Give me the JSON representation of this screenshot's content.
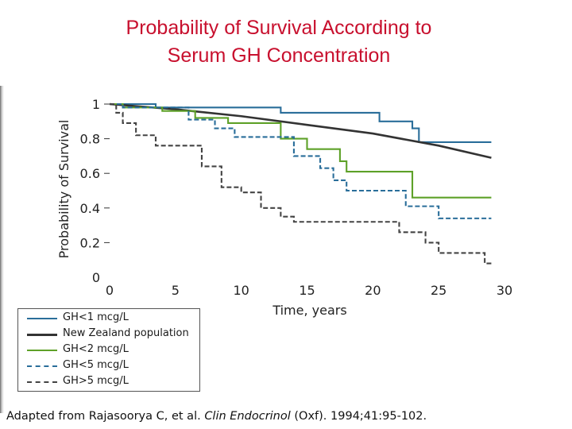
{
  "slide": {
    "title_line1": "Probability of Survival According to",
    "title_line2": "Serum GH Concentration"
  },
  "footnote": {
    "prefix": "Adapted from Rajasoorya C, et al. ",
    "journal": "Clin Endocrinol",
    "suffix": " (Oxf). 1994;41:95-102."
  },
  "chart_data": {
    "type": "line",
    "title": "",
    "xlabel": "Time, years",
    "ylabel": "Probability of Survival",
    "xlim": [
      0,
      30
    ],
    "ylim": [
      0,
      1
    ],
    "x_ticks": [
      "0",
      "5",
      "10",
      "15",
      "20",
      "25",
      "30"
    ],
    "y_ticks": [
      "0",
      "0.2",
      "0.4",
      "0.6",
      "0.8",
      "1"
    ],
    "legend_position": "below-left",
    "series": [
      {
        "name": "GH<1 mcg/L",
        "color": "#2a6e9a",
        "style": "solid-step",
        "points": [
          [
            0,
            1.0
          ],
          [
            3.5,
            1.0
          ],
          [
            3.5,
            0.98
          ],
          [
            13,
            0.98
          ],
          [
            13,
            0.95
          ],
          [
            20.5,
            0.95
          ],
          [
            20.5,
            0.9
          ],
          [
            23,
            0.9
          ],
          [
            23,
            0.86
          ],
          [
            23.5,
            0.86
          ],
          [
            23.5,
            0.78
          ],
          [
            29,
            0.78
          ]
        ]
      },
      {
        "name": "New Zealand population",
        "color": "#333333",
        "style": "solid-smooth",
        "points": [
          [
            0,
            1.0
          ],
          [
            5,
            0.97
          ],
          [
            10,
            0.93
          ],
          [
            15,
            0.88
          ],
          [
            20,
            0.83
          ],
          [
            25,
            0.76
          ],
          [
            29,
            0.69
          ]
        ]
      },
      {
        "name": "GH<2 mcg/L",
        "color": "#5ea128",
        "style": "solid-step",
        "points": [
          [
            0,
            1.0
          ],
          [
            1,
            1.0
          ],
          [
            1,
            0.98
          ],
          [
            4,
            0.98
          ],
          [
            4,
            0.96
          ],
          [
            6.5,
            0.96
          ],
          [
            6.5,
            0.92
          ],
          [
            9,
            0.92
          ],
          [
            9,
            0.89
          ],
          [
            13,
            0.89
          ],
          [
            13,
            0.8
          ],
          [
            15,
            0.8
          ],
          [
            15,
            0.74
          ],
          [
            17.5,
            0.74
          ],
          [
            17.5,
            0.67
          ],
          [
            18,
            0.67
          ],
          [
            18,
            0.61
          ],
          [
            23,
            0.61
          ],
          [
            23,
            0.46
          ],
          [
            29,
            0.46
          ]
        ]
      },
      {
        "name": "GH<5 mcg/L",
        "color": "#2a6e9a",
        "style": "dashed-step",
        "points": [
          [
            0,
            1.0
          ],
          [
            1,
            1.0
          ],
          [
            1,
            0.98
          ],
          [
            6,
            0.98
          ],
          [
            6,
            0.91
          ],
          [
            8,
            0.91
          ],
          [
            8,
            0.86
          ],
          [
            9.5,
            0.86
          ],
          [
            9.5,
            0.81
          ],
          [
            14,
            0.81
          ],
          [
            14,
            0.7
          ],
          [
            16,
            0.7
          ],
          [
            16,
            0.63
          ],
          [
            17,
            0.63
          ],
          [
            17,
            0.56
          ],
          [
            18,
            0.56
          ],
          [
            18,
            0.5
          ],
          [
            22.5,
            0.5
          ],
          [
            22.5,
            0.41
          ],
          [
            25,
            0.41
          ],
          [
            25,
            0.34
          ],
          [
            29,
            0.34
          ]
        ]
      },
      {
        "name": "GH>5 mcg/L",
        "color": "#444444",
        "style": "dashed-step",
        "points": [
          [
            0,
            1.0
          ],
          [
            0.5,
            1.0
          ],
          [
            0.5,
            0.95
          ],
          [
            1,
            0.95
          ],
          [
            1,
            0.89
          ],
          [
            2,
            0.89
          ],
          [
            2,
            0.82
          ],
          [
            3.5,
            0.82
          ],
          [
            3.5,
            0.76
          ],
          [
            7,
            0.76
          ],
          [
            7,
            0.64
          ],
          [
            8.5,
            0.64
          ],
          [
            8.5,
            0.52
          ],
          [
            10,
            0.52
          ],
          [
            10,
            0.49
          ],
          [
            11.5,
            0.49
          ],
          [
            11.5,
            0.4
          ],
          [
            13,
            0.4
          ],
          [
            13,
            0.35
          ],
          [
            14,
            0.35
          ],
          [
            14,
            0.32
          ],
          [
            22,
            0.32
          ],
          [
            22,
            0.26
          ],
          [
            24,
            0.26
          ],
          [
            24,
            0.2
          ],
          [
            25,
            0.2
          ],
          [
            25,
            0.14
          ],
          [
            28.5,
            0.14
          ],
          [
            28.5,
            0.08
          ],
          [
            29,
            0.08
          ]
        ]
      }
    ]
  }
}
